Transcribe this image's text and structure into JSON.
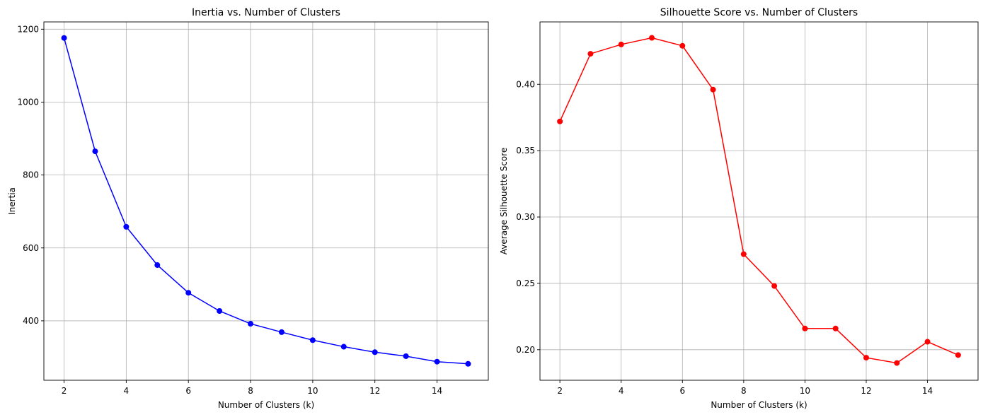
{
  "chart_data": [
    {
      "type": "line",
      "title": "Inertia vs. Number of Clusters",
      "xlabel": "Number of Clusters (k)",
      "ylabel": "Inertia",
      "xlim": [
        1.35,
        15.65
      ],
      "ylim": [
        237,
        1220
      ],
      "xticks": [
        2,
        4,
        6,
        8,
        10,
        12,
        14
      ],
      "yticks": [
        400,
        600,
        800,
        1000,
        1200
      ],
      "grid": true,
      "color": "#0000ff",
      "marker": "circle",
      "series": [
        {
          "x": [
            2,
            3,
            4,
            5,
            6,
            7,
            8,
            9,
            10,
            11,
            12,
            13,
            14,
            15
          ],
          "y": [
            1176,
            865,
            658,
            553,
            477,
            427,
            392,
            369,
            347,
            329,
            314,
            303,
            288,
            282
          ]
        }
      ]
    },
    {
      "type": "line",
      "title": "Silhouette Score vs. Number of Clusters",
      "xlabel": "Number of Clusters (k)",
      "ylabel": "Average Silhouette Score",
      "xlim": [
        1.35,
        15.65
      ],
      "ylim": [
        0.177,
        0.447
      ],
      "xticks": [
        2,
        4,
        6,
        8,
        10,
        12,
        14
      ],
      "yticks": [
        0.2,
        0.25,
        0.3,
        0.35,
        0.4
      ],
      "ytick_labels": [
        "0.20",
        "0.25",
        "0.30",
        "0.35",
        "0.40"
      ],
      "grid": true,
      "color": "#ff0000",
      "marker": "circle",
      "series": [
        {
          "x": [
            2,
            3,
            4,
            5,
            6,
            7,
            8,
            9,
            10,
            11,
            12,
            13,
            14,
            15
          ],
          "y": [
            0.372,
            0.423,
            0.43,
            0.435,
            0.429,
            0.396,
            0.272,
            0.248,
            0.216,
            0.216,
            0.194,
            0.19,
            0.206,
            0.196
          ]
        }
      ]
    }
  ]
}
